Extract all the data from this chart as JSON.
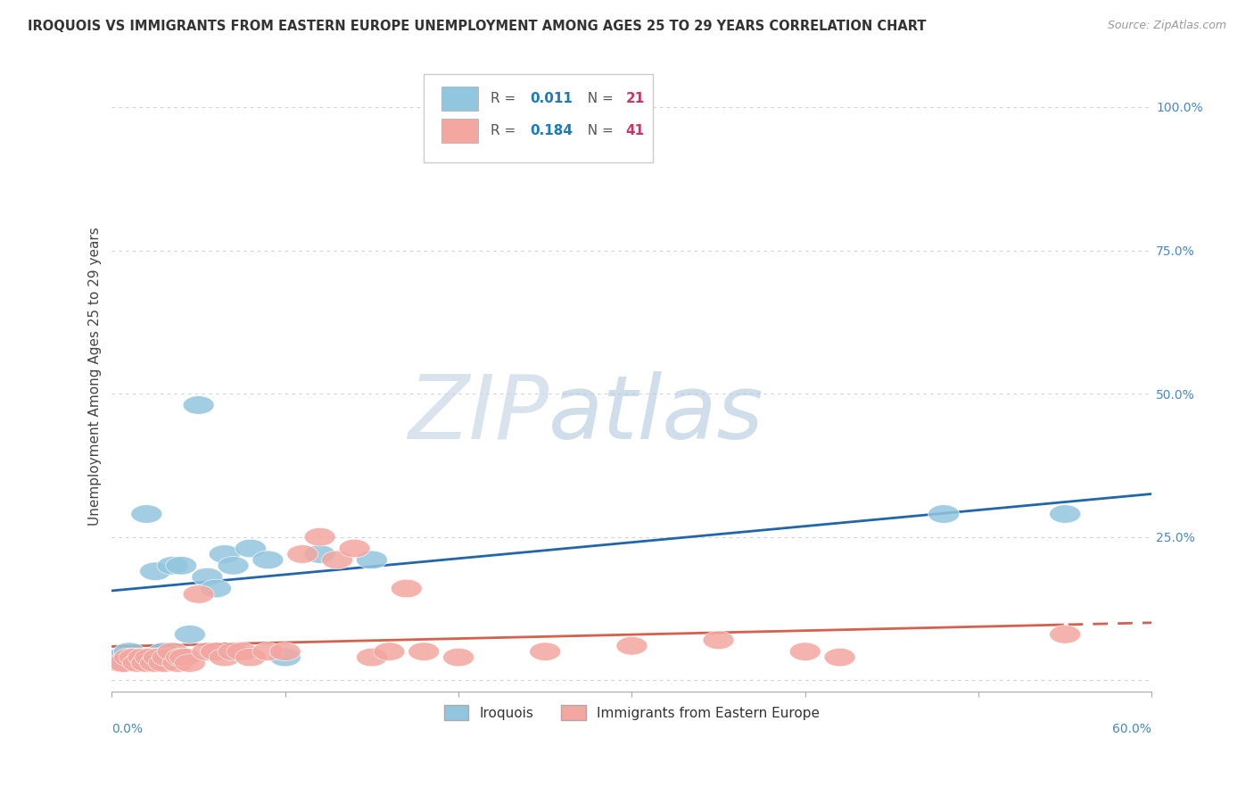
{
  "title": "IROQUOIS VS IMMIGRANTS FROM EASTERN EUROPE UNEMPLOYMENT AMONG AGES 25 TO 29 YEARS CORRELATION CHART",
  "source": "Source: ZipAtlas.com",
  "ylabel": "Unemployment Among Ages 25 to 29 years",
  "ytick_values": [
    0.0,
    0.25,
    0.5,
    0.75,
    1.0
  ],
  "xlim": [
    0.0,
    0.6
  ],
  "ylim": [
    -0.02,
    1.08
  ],
  "legend_r1": "0.011",
  "legend_n1": "21",
  "legend_r2": "0.184",
  "legend_n2": "41",
  "color_iroquois": "#92c5de",
  "color_eastern_europe": "#f4a6a0",
  "color_line_iroquois": "#2166ac",
  "color_line_eastern_europe": "#d6604d",
  "watermark_zip": "ZIP",
  "watermark_atlas": "atlas",
  "iroquois_x": [
    0.005,
    0.01,
    0.015,
    0.02,
    0.025,
    0.03,
    0.035,
    0.04,
    0.045,
    0.05,
    0.055,
    0.06,
    0.065,
    0.07,
    0.08,
    0.09,
    0.1,
    0.12,
    0.15,
    0.48,
    0.55
  ],
  "iroquois_y": [
    0.04,
    0.05,
    0.04,
    0.29,
    0.19,
    0.05,
    0.2,
    0.2,
    0.08,
    0.48,
    0.18,
    0.16,
    0.22,
    0.2,
    0.23,
    0.21,
    0.04,
    0.22,
    0.21,
    0.29,
    0.29
  ],
  "eastern_europe_x": [
    0.005,
    0.007,
    0.01,
    0.013,
    0.015,
    0.018,
    0.02,
    0.022,
    0.025,
    0.027,
    0.03,
    0.032,
    0.035,
    0.038,
    0.04,
    0.042,
    0.045,
    0.05,
    0.055,
    0.06,
    0.065,
    0.07,
    0.075,
    0.08,
    0.09,
    0.1,
    0.11,
    0.12,
    0.13,
    0.14,
    0.15,
    0.16,
    0.17,
    0.18,
    0.2,
    0.25,
    0.3,
    0.35,
    0.4,
    0.42,
    0.55
  ],
  "eastern_europe_y": [
    0.03,
    0.03,
    0.04,
    0.04,
    0.03,
    0.04,
    0.03,
    0.04,
    0.03,
    0.04,
    0.03,
    0.04,
    0.05,
    0.03,
    0.04,
    0.04,
    0.03,
    0.15,
    0.05,
    0.05,
    0.04,
    0.05,
    0.05,
    0.04,
    0.05,
    0.05,
    0.22,
    0.25,
    0.21,
    0.23,
    0.04,
    0.05,
    0.16,
    0.05,
    0.04,
    0.05,
    0.06,
    0.07,
    0.05,
    0.04,
    0.08
  ],
  "grid_color": "#d0d0d0",
  "background_color": "#ffffff",
  "trend_line1_y0": 0.27,
  "trend_line1_y1": 0.285,
  "trend_line2_y0": 0.03,
  "trend_line2_y1": 0.095
}
